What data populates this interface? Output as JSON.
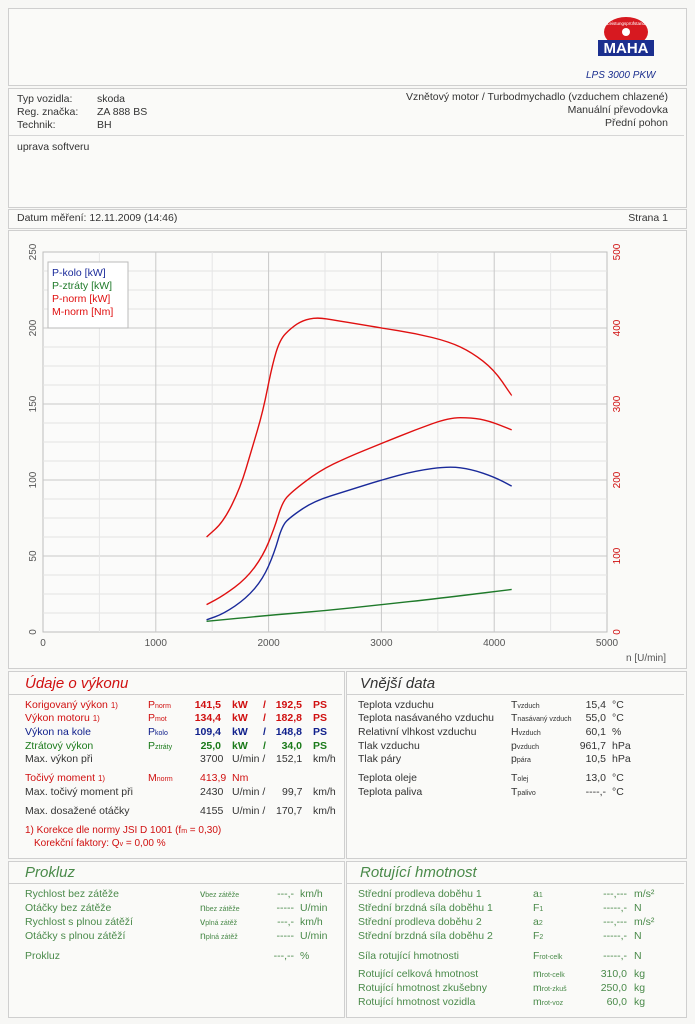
{
  "header": {
    "logo_text": "MAHA",
    "logo_ring_text": "Leistungsprüfstand",
    "model": "LPS 3000 PKW",
    "page_label": "Strana 1"
  },
  "vehicle": {
    "type_label": "Typ vozidla:",
    "type_value": "skoda",
    "reg_label": "Reg. značka:",
    "reg_value": "ZA 888 BS",
    "tech_label": "Technik:",
    "tech_value": "BH",
    "engine": "Vznětový motor / Turbodmychadlo (vzduchem chlazené)",
    "gearbox": "Manuální převodovka",
    "drive": "Přední pohon"
  },
  "note": "uprava softveru",
  "measurement_date": "Datum měření: 12.11.2009 (14:46)",
  "chart_data": {
    "type": "line",
    "x_unit_label": "n [U/min]",
    "xlim": [
      0,
      5000
    ],
    "x_ticks": [
      "0",
      "1000",
      "2000",
      "3000",
      "4000",
      "5000"
    ],
    "ylim_left": [
      0,
      250
    ],
    "y_ticks_left": [
      "0",
      "50",
      "100",
      "150",
      "200",
      "250"
    ],
    "ylim_right": [
      0,
      500
    ],
    "y_ticks_right": [
      "0",
      "100",
      "200",
      "300",
      "400",
      "500"
    ],
    "legend": [
      "P-kolo [kW]",
      "P-ztráty [kW]",
      "P-norm [kW]",
      "M-norm [Nm]"
    ],
    "series": [
      {
        "name": "P-kolo [kW]",
        "color": "#1a2a9a",
        "axis": "left",
        "x": [
          1450,
          1600,
          1800,
          1950,
          2050,
          2120,
          2200,
          2400,
          2700,
          3000,
          3300,
          3600,
          3800,
          4000,
          4155
        ],
        "y": [
          8,
          12,
          22,
          35,
          52,
          70,
          76,
          86,
          93,
          100,
          106,
          109,
          107,
          102,
          96
        ]
      },
      {
        "name": "P-ztráty [kW]",
        "color": "#1f7a2a",
        "axis": "left",
        "x": [
          1450,
          2000,
          2500,
          3000,
          3500,
          4155
        ],
        "y": [
          7,
          11,
          14,
          18,
          22,
          28
        ]
      },
      {
        "name": "P-norm [kW]",
        "color": "#e01010",
        "axis": "left",
        "x": [
          1450,
          1600,
          1800,
          1950,
          2050,
          2120,
          2200,
          2450,
          2700,
          3000,
          3300,
          3600,
          3800,
          3950,
          4155
        ],
        "y": [
          18,
          24,
          35,
          50,
          68,
          85,
          92,
          106,
          115,
          124,
          133,
          141,
          141,
          139,
          133
        ]
      },
      {
        "name": "M-norm [Nm]",
        "color": "#e01010",
        "axis": "right",
        "x": [
          1450,
          1600,
          1750,
          1850,
          1950,
          2030,
          2100,
          2200,
          2300,
          2430,
          2600,
          2800,
          3000,
          3300,
          3600,
          3800,
          4000,
          4155
        ],
        "y": [
          125,
          145,
          190,
          240,
          290,
          350,
          385,
          400,
          410,
          414,
          410,
          405,
          400,
          393,
          382,
          368,
          345,
          311
        ]
      }
    ]
  },
  "performance": {
    "title": "Údaje o výkonu",
    "rows": [
      {
        "label": "Korigovaný výkon",
        "sup": "1)",
        "sym": "P",
        "sub": "norm",
        "v1": "141,5",
        "u1": "kW",
        "sep": "/",
        "v2": "192,5",
        "u2": "PS",
        "cls": "red"
      },
      {
        "label": "Výkon motoru",
        "sup": "1)",
        "sym": "P",
        "sub": "mot",
        "v1": "134,4",
        "u1": "kW",
        "sep": "/",
        "v2": "182,8",
        "u2": "PS",
        "cls": "red"
      },
      {
        "label": "Výkon na kole",
        "sup": "",
        "sym": "P",
        "sub": "kolo",
        "v1": "109,4",
        "u1": "kW",
        "sep": "/",
        "v2": "148,8",
        "u2": "PS",
        "cls": "blue"
      },
      {
        "label": "Ztrátový výkon",
        "sup": "",
        "sym": "P",
        "sub": "ztráty",
        "v1": "25,0",
        "u1": "kW",
        "sep": "/",
        "v2": "34,0",
        "u2": "PS",
        "cls": "green"
      }
    ],
    "max_power_at_label": "Max. výkon při",
    "max_power_at_rpm": "3700",
    "max_power_at_unit": "U/min /",
    "max_power_at_speed": "152,1",
    "max_power_at_speed_unit": "km/h",
    "torque_label": "Točivý moment",
    "torque_sup": "1)",
    "torque_sym": "M",
    "torque_sub": "norm",
    "torque_value": "413,9",
    "torque_unit": "Nm",
    "max_torque_label": "Max. točivý moment při",
    "max_torque_rpm": "2430",
    "max_torque_unit": "U/min /",
    "max_torque_speed": "99,7",
    "max_torque_speed_unit": "km/h",
    "max_rpm_label": "Max. dosažené otáčky",
    "max_rpm": "4155",
    "max_rpm_unit": "U/min /",
    "max_rpm_speed": "170,7",
    "max_rpm_speed_unit": "km/h",
    "correction_line": "1) Korekce dle normy JSI D 1001 (f",
    "correction_fm_sub": "m",
    "correction_fm_val": " = 0,30)",
    "correction_factor_label": "Korekční faktory: Q",
    "correction_factor_sub": "v",
    "correction_factor_val": " =   0,00 %"
  },
  "external": {
    "title": "Vnější data",
    "rows": [
      {
        "label": "Teplota vzduchu",
        "sym": "T",
        "sub": "vzduch",
        "value": "15,4",
        "unit": "°C"
      },
      {
        "label": "Teplota nasávaného vzduchu",
        "sym": "T",
        "sub": "nasávaný vzduch",
        "value": "55,0",
        "unit": "°C"
      },
      {
        "label": "Relativní vlhkost vzduchu",
        "sym": "H",
        "sub": "vzduch",
        "value": "60,1",
        "unit": "%"
      },
      {
        "label": "Tlak vzduchu",
        "sym": "p",
        "sub": "vzduch",
        "value": "961,7",
        "unit": "hPa"
      },
      {
        "label": "Tlak páry",
        "sym": "p",
        "sub": "pára",
        "value": "10,5",
        "unit": "hPa"
      },
      {
        "label": "Teplota oleje",
        "sym": "T",
        "sub": "olej",
        "value": "13,0",
        "unit": "°C"
      },
      {
        "label": "Teplota paliva",
        "sym": "T",
        "sub": "palivo",
        "value": "----,-",
        "unit": "°C"
      }
    ]
  },
  "prokluz": {
    "title": "Prokluz",
    "rows": [
      {
        "label": "Rychlost bez zátěže",
        "sym": "v",
        "sub": "bez zátěže",
        "value": "---,-",
        "unit": "km/h"
      },
      {
        "label": "Otáčky bez zátěže",
        "sym": "n",
        "sub": "bez zátěže",
        "value": "-----",
        "unit": "U/min"
      },
      {
        "label": "Rychlost s plnou zátěží",
        "sym": "v",
        "sub": "plná zátěž",
        "value": "---,-",
        "unit": "km/h"
      },
      {
        "label": "Otáčky s plnou zátěží",
        "sym": "n",
        "sub": "plná zátěž",
        "value": "-----",
        "unit": "U/min"
      },
      {
        "label": "Prokluz",
        "sym": "",
        "sub": "",
        "value": "---,--",
        "unit": "%"
      }
    ]
  },
  "rotating": {
    "title": "Rotující hmotnost",
    "rows": [
      {
        "label": "Střední prodleva doběhu 1",
        "sym": "a",
        "sub": "1",
        "value": "---,---",
        "unit": "m/s²"
      },
      {
        "label": "Střední brzdná síla doběhu 1",
        "sym": "F",
        "sub": "1",
        "value": "-----,-",
        "unit": "N"
      },
      {
        "label": "Střední prodleva doběhu 2",
        "sym": "a",
        "sub": "2",
        "value": "---,---",
        "unit": "m/s²"
      },
      {
        "label": "Střední brzdná síla doběhu 2",
        "sym": "F",
        "sub": "2",
        "value": "-----,-",
        "unit": "N"
      },
      {
        "label": "Síla rotující hmotnosti",
        "sym": "F",
        "sub": "rot-celk",
        "value": "-----,-",
        "unit": "N"
      },
      {
        "label": "Rotující celková hmotnost",
        "sym": "m",
        "sub": "rot-celk",
        "value": "310,0",
        "unit": "kg"
      },
      {
        "label": "Rotující hmotnost zkušebny",
        "sym": "m",
        "sub": "rot-zkuš",
        "value": "250,0",
        "unit": "kg"
      },
      {
        "label": "Rotující hmotnost vozidla",
        "sym": "m",
        "sub": "rot-voz",
        "value": "60,0",
        "unit": "kg"
      }
    ]
  }
}
